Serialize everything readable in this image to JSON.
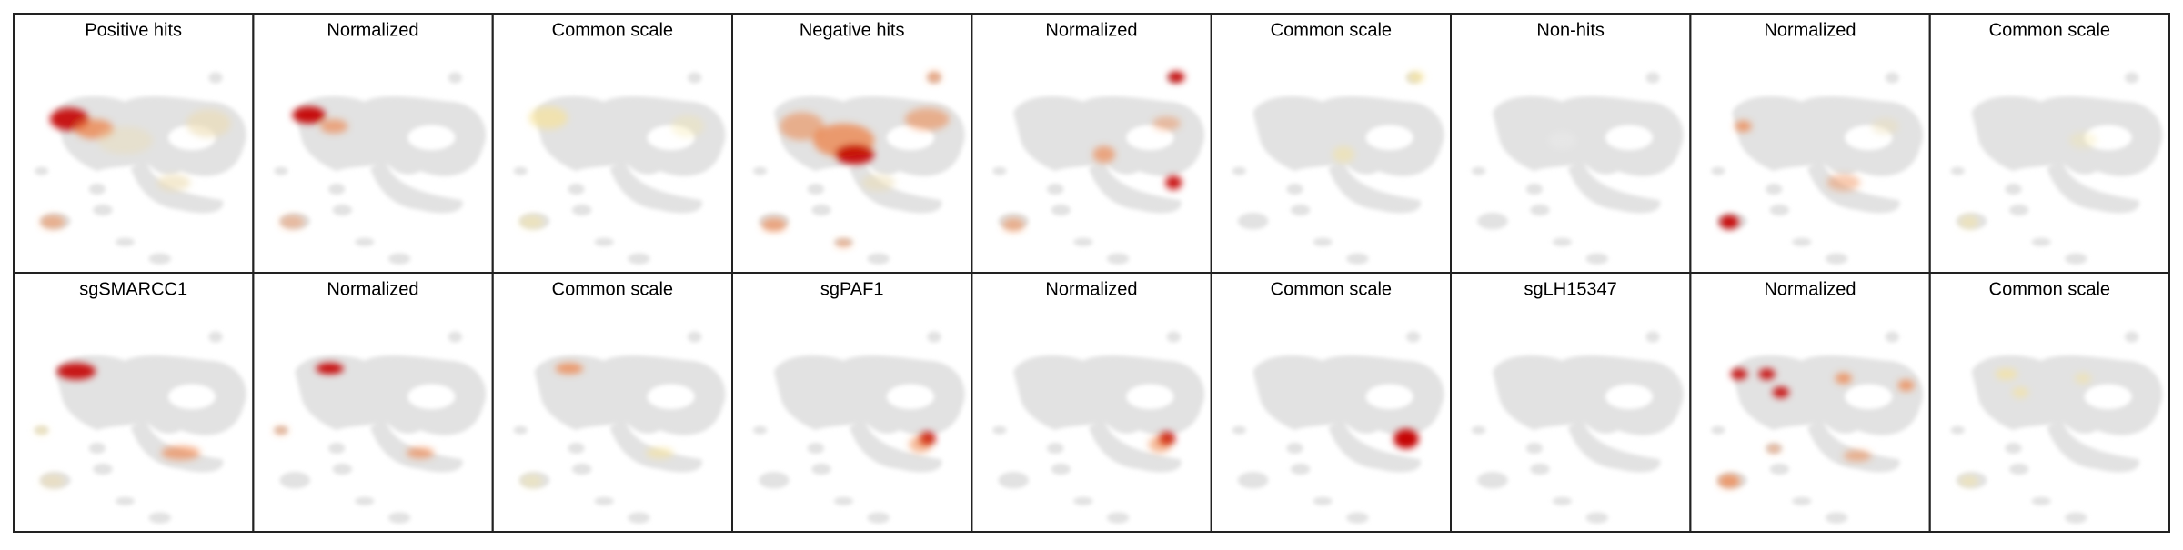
{
  "grid": {
    "rows": [
      [
        "Positive hits",
        "Normalized",
        "Common scale",
        "Negative hits",
        "Normalized",
        "Common scale",
        "Non-hits",
        "Normalized",
        "Common scale"
      ],
      [
        "sgSMARCC1",
        "Normalized",
        "Common scale",
        "sgPAF1",
        "Normalized",
        "Common scale",
        "sgLH15347",
        "Normalized",
        "Common scale"
      ]
    ]
  }
}
